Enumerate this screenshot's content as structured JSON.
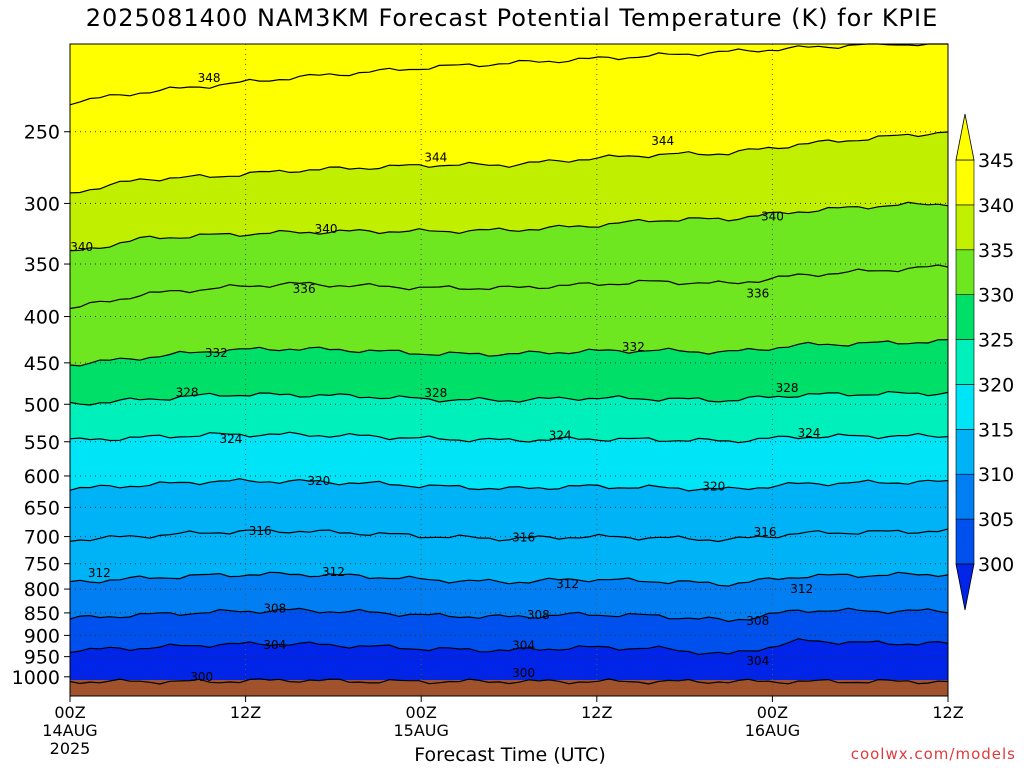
{
  "chart_data": {
    "type": "heatmap",
    "title": "2025081400 NAM3KM Forecast Potential Temperature (K) for KPIE",
    "xlabel": "Forecast Time (UTC)",
    "ylabel": "",
    "y_axis": {
      "scale": "log",
      "inverted": true,
      "unit": "hPa",
      "ticks": [
        250,
        300,
        350,
        400,
        450,
        500,
        550,
        600,
        650,
        700,
        750,
        800,
        850,
        900,
        950,
        1000
      ],
      "range": [
        1050,
        200
      ]
    },
    "x_axis": {
      "range_hours": [
        0,
        60
      ],
      "ticks": [
        {
          "hour": 0,
          "label": "00Z",
          "sub1": "14AUG",
          "sub2": "2025"
        },
        {
          "hour": 12,
          "label": "12Z",
          "sub1": "",
          "sub2": ""
        },
        {
          "hour": 24,
          "label": "00Z",
          "sub1": "15AUG",
          "sub2": ""
        },
        {
          "hour": 36,
          "label": "12Z",
          "sub1": "",
          "sub2": ""
        },
        {
          "hour": 48,
          "label": "00Z",
          "sub1": "16AUG",
          "sub2": ""
        },
        {
          "hour": 60,
          "label": "12Z",
          "sub1": "",
          "sub2": ""
        }
      ]
    },
    "grid": true,
    "colorbar": {
      "levels": [
        300,
        305,
        310,
        315,
        320,
        325,
        330,
        335,
        340,
        345
      ],
      "colors": [
        "#0024e8",
        "#0050ee",
        "#007ef2",
        "#00b2f6",
        "#00e4f8",
        "#00f0bc",
        "#00e068",
        "#6ee620",
        "#c0f000",
        "#ffff00"
      ],
      "under_color": "#0a0ad8",
      "extend": "both"
    },
    "series": [
      {
        "value": 300,
        "pressures": [
          1012,
          1012,
          1012,
          1008,
          1012,
          1012,
          1012,
          1012,
          1012,
          1012,
          1012,
          1012,
          1012
        ]
      },
      {
        "value": 304,
        "pressures": [
          935,
          929,
          921,
          919,
          925,
          932,
          935,
          928,
          930,
          945,
          912,
          918,
          919
        ]
      },
      {
        "value": 308,
        "pressures": [
          862,
          854,
          848,
          844,
          848,
          856,
          859,
          853,
          856,
          867,
          844,
          846,
          846
        ]
      },
      {
        "value": 312,
        "pressures": [
          786,
          778,
          772,
          770,
          774,
          782,
          786,
          780,
          784,
          790,
          774,
          772,
          770
        ]
      },
      {
        "value": 316,
        "pressures": [
          706,
          699,
          692,
          690,
          694,
          700,
          704,
          700,
          702,
          706,
          694,
          692,
          690
        ]
      },
      {
        "value": 320,
        "pressures": [
          620,
          614,
          608,
          608,
          611,
          616,
          620,
          616,
          618,
          621,
          612,
          610,
          609
        ]
      },
      {
        "value": 324,
        "pressures": [
          548,
          544,
          540,
          540,
          542,
          546,
          548,
          546,
          547,
          549,
          543,
          542,
          542
        ]
      },
      {
        "value": 328,
        "pressures": [
          500,
          494,
          488,
          488,
          490,
          494,
          495,
          492,
          493,
          495,
          488,
          487,
          486
        ]
      },
      {
        "value": 332,
        "pressures": [
          452,
          444,
          436,
          434,
          436,
          440,
          440,
          437,
          436,
          438,
          430,
          428,
          426
        ]
      },
      {
        "value": 336,
        "pressures": [
          392,
          378,
          372,
          368,
          370,
          372,
          372,
          369,
          366,
          368,
          360,
          356,
          352
        ]
      },
      {
        "value": 340,
        "pressures": [
          340,
          328,
          325,
          323,
          322,
          322,
          321,
          318,
          313,
          312,
          306,
          302,
          300
        ]
      },
      {
        "value": 344,
        "pressures": [
          292,
          282,
          280,
          276,
          274,
          272,
          272,
          268,
          265,
          264,
          258,
          254,
          250
        ]
      },
      {
        "value": 348,
        "pressures": [
          232,
          226,
          222,
          218,
          215,
          212,
          210,
          208,
          206,
          204,
          202,
          200,
          200
        ]
      }
    ],
    "series_x_hours": [
      0,
      5,
      10,
      15,
      20,
      25,
      30,
      35,
      40,
      45,
      50,
      55,
      60
    ],
    "contour_labels": [
      {
        "text": "348",
        "hour": 9.5,
        "p": 218
      },
      {
        "text": "344",
        "hour": 25,
        "p": 267
      },
      {
        "text": "344",
        "hour": 40.5,
        "p": 256
      },
      {
        "text": "340",
        "hour": 0.8,
        "p": 335
      },
      {
        "text": "340",
        "hour": 17.5,
        "p": 320
      },
      {
        "text": "340",
        "hour": 48,
        "p": 310
      },
      {
        "text": "336",
        "hour": 16,
        "p": 373
      },
      {
        "text": "336",
        "hour": 47,
        "p": 377
      },
      {
        "text": "332",
        "hour": 10,
        "p": 439
      },
      {
        "text": "332",
        "hour": 38.5,
        "p": 432
      },
      {
        "text": "328",
        "hour": 8,
        "p": 485
      },
      {
        "text": "328",
        "hour": 25,
        "p": 486
      },
      {
        "text": "328",
        "hour": 49,
        "p": 480
      },
      {
        "text": "324",
        "hour": 11,
        "p": 546
      },
      {
        "text": "324",
        "hour": 33.5,
        "p": 541
      },
      {
        "text": "324",
        "hour": 50.5,
        "p": 538
      },
      {
        "text": "320",
        "hour": 17,
        "p": 608
      },
      {
        "text": "320",
        "hour": 44,
        "p": 616
      },
      {
        "text": "316",
        "hour": 13,
        "p": 690
      },
      {
        "text": "316",
        "hour": 31,
        "p": 702
      },
      {
        "text": "316",
        "hour": 47.5,
        "p": 692
      },
      {
        "text": "312",
        "hour": 2,
        "p": 768
      },
      {
        "text": "312",
        "hour": 18,
        "p": 766
      },
      {
        "text": "312",
        "hour": 34,
        "p": 790
      },
      {
        "text": "312",
        "hour": 50,
        "p": 800
      },
      {
        "text": "308",
        "hour": 14,
        "p": 840
      },
      {
        "text": "308",
        "hour": 32,
        "p": 855
      },
      {
        "text": "308",
        "hour": 47,
        "p": 868
      },
      {
        "text": "304",
        "hour": 14,
        "p": 922
      },
      {
        "text": "304",
        "hour": 31,
        "p": 924
      },
      {
        "text": "304",
        "hour": 47,
        "p": 960
      },
      {
        "text": "300",
        "hour": 9,
        "p": 1000
      },
      {
        "text": "300",
        "hour": 31,
        "p": 990
      }
    ]
  },
  "credit": "coolwx.com/models"
}
